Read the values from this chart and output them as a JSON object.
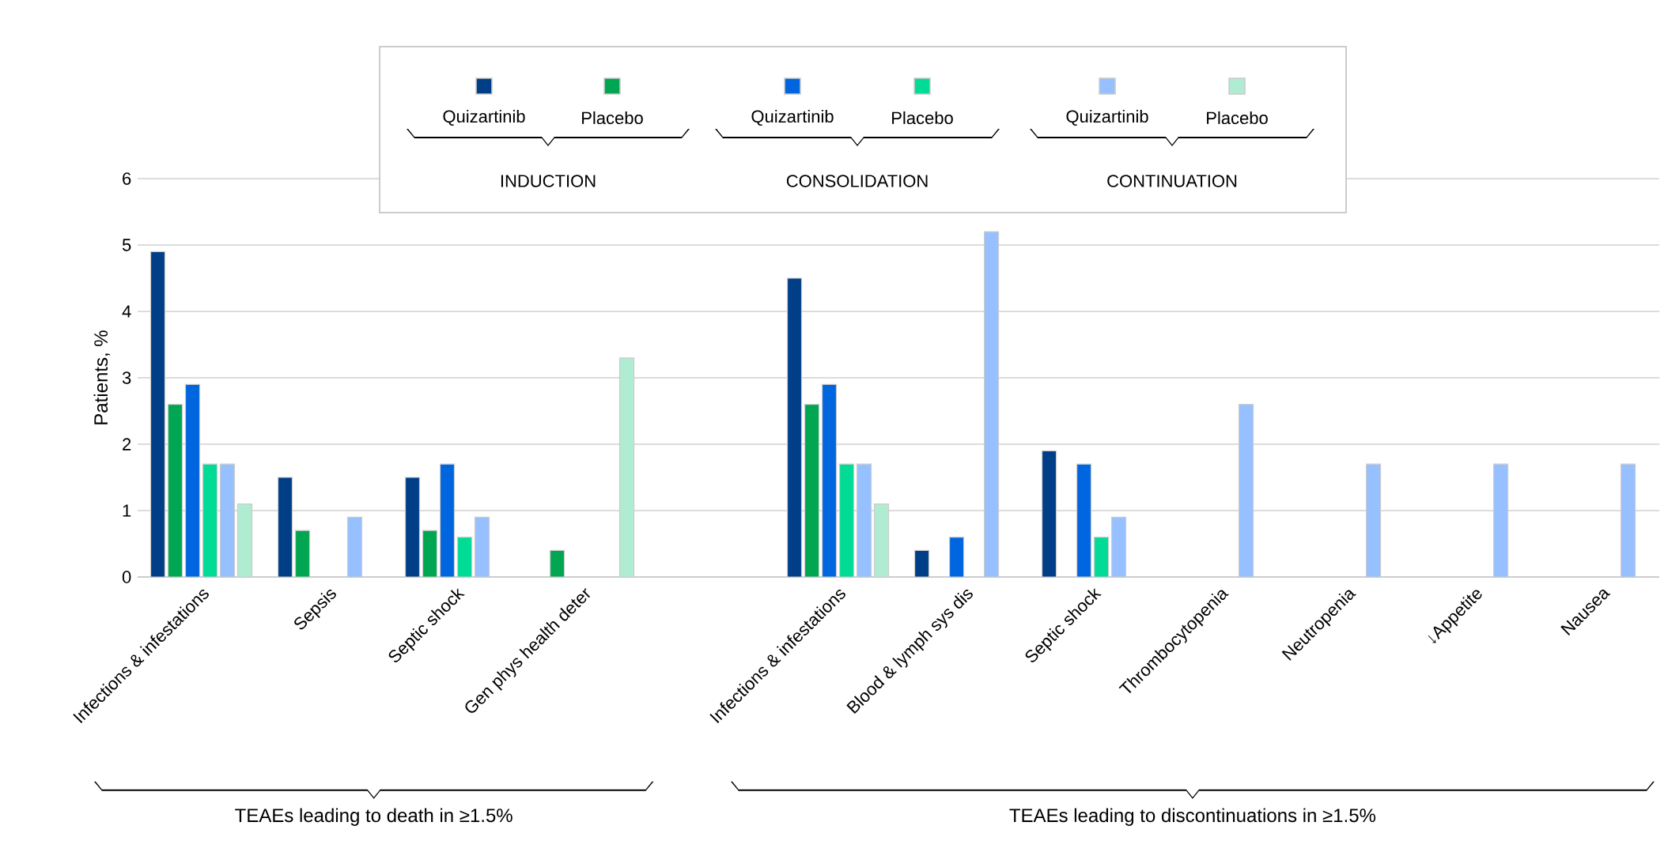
{
  "chart_data": {
    "type": "bar",
    "ylabel": "Patients, %",
    "categories": [
      "Infections & infestations",
      "Sepsis",
      "Septic shock",
      "Gen phys health deter",
      null,
      "Infections & infestations",
      "Blood & lymph sys dis",
      "Septic shock",
      "Thrombocytopenia",
      "Neutropenia",
      "↓Appetite",
      "Nausea"
    ],
    "series": [
      {
        "name": "Quizartinib",
        "color": "#003f87",
        "values": [
          4.9,
          1.5,
          1.5,
          null,
          null,
          4.5,
          0.4,
          1.9,
          null,
          null,
          null,
          null
        ]
      },
      {
        "name": "Placebo",
        "color": "#00a651",
        "values": [
          2.6,
          0.7,
          0.7,
          0.4,
          null,
          2.6,
          null,
          null,
          null,
          null,
          null,
          null
        ]
      },
      {
        "name": "Quizartinib",
        "color": "#0066e0",
        "values": [
          2.9,
          null,
          1.7,
          null,
          null,
          2.9,
          0.6,
          1.7,
          null,
          null,
          null,
          null
        ]
      },
      {
        "name": "Placebo",
        "color": "#00db96",
        "values": [
          1.7,
          null,
          0.6,
          null,
          null,
          1.7,
          null,
          0.6,
          null,
          null,
          null,
          null
        ]
      },
      {
        "name": "Quizartinib",
        "color": "#96c0ff",
        "values": [
          1.7,
          0.9,
          0.9,
          null,
          null,
          1.7,
          5.2,
          0.9,
          2.6,
          1.7,
          1.7,
          1.7
        ]
      },
      {
        "name": "Placebo",
        "color": "#b0ecd2",
        "values": [
          1.1,
          null,
          null,
          3.3,
          null,
          1.1,
          null,
          null,
          null,
          null,
          null,
          null
        ]
      }
    ],
    "ylim": [
      0,
      6
    ],
    "yticks": [
      0,
      1,
      2,
      3,
      4,
      5,
      6
    ],
    "grid": "y",
    "legend": "top",
    "annotations": [
      "INDUCTION",
      "CONSOLIDATION",
      "CONTINUATION",
      "TEAEs leading to death in ≥1.5%",
      "TEAEs leading to discontinuations in ≥1.5%"
    ]
  }
}
